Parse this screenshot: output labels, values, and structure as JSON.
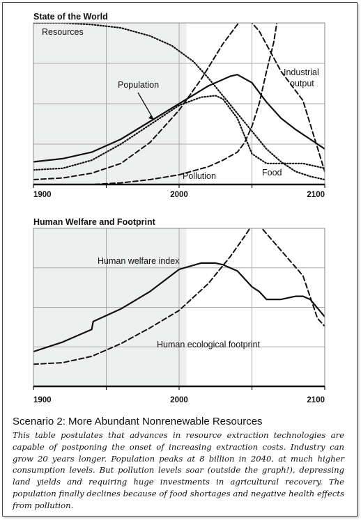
{
  "chart_data": [
    {
      "type": "line",
      "title": "State of the World",
      "xlim": [
        1900,
        2100
      ],
      "ylim": [
        0,
        1
      ],
      "x_ticks": [
        "1900",
        "2000",
        "2100"
      ],
      "grid": true,
      "shaded_region": [
        1900,
        2005
      ],
      "series": [
        {
          "name": "Resources",
          "style": "dotted",
          "x": [
            1900,
            1920,
            1940,
            1960,
            1980,
            1995,
            2010,
            2020,
            2030,
            2040,
            2050,
            2060,
            2070,
            2080,
            2090,
            2100
          ],
          "y": [
            1.0,
            1.0,
            0.99,
            0.97,
            0.92,
            0.86,
            0.76,
            0.66,
            0.55,
            0.44,
            0.33,
            0.22,
            0.14,
            0.08,
            0.05,
            0.03
          ]
        },
        {
          "name": "Population",
          "style": "solid",
          "x": [
            1900,
            1920,
            1940,
            1960,
            1980,
            2000,
            2020,
            2035,
            2040,
            2050,
            2060,
            2070,
            2080,
            2090,
            2100
          ],
          "y": [
            0.14,
            0.16,
            0.2,
            0.28,
            0.39,
            0.5,
            0.61,
            0.67,
            0.68,
            0.63,
            0.51,
            0.41,
            0.34,
            0.28,
            0.22
          ]
        },
        {
          "name": "Industrial output",
          "style": "dashed",
          "x": [
            1900,
            1920,
            1940,
            1960,
            1980,
            2000,
            2015,
            2030,
            2040,
            2045,
            2055,
            2070,
            2085,
            2100
          ],
          "y": [
            0.03,
            0.04,
            0.07,
            0.13,
            0.26,
            0.46,
            0.65,
            0.87,
            0.99,
            1.05,
            0.95,
            0.7,
            0.52,
            0.08
          ]
        },
        {
          "name": "Food",
          "style": "dotted",
          "x": [
            1900,
            1920,
            1940,
            1960,
            1980,
            2000,
            2015,
            2025,
            2030,
            2040,
            2050,
            2060,
            2070,
            2085,
            2100
          ],
          "y": [
            0.09,
            0.1,
            0.15,
            0.25,
            0.37,
            0.49,
            0.54,
            0.55,
            0.53,
            0.41,
            0.19,
            0.13,
            0.13,
            0.13,
            0.1
          ]
        },
        {
          "name": "Pollution",
          "style": "dashed",
          "x": [
            1900,
            1940,
            1960,
            1980,
            2000,
            2020,
            2030,
            2040,
            2045,
            2050,
            2055,
            2060,
            2065,
            2068
          ],
          "y": [
            0.0,
            0.0,
            0.01,
            0.03,
            0.06,
            0.11,
            0.15,
            0.2,
            0.26,
            0.36,
            0.5,
            0.7,
            0.88,
            1.05
          ]
        }
      ],
      "labels": {
        "resources": "Resources",
        "population": "Population",
        "industrial_1": "Industrial",
        "industrial_2": "output",
        "food": "Food",
        "pollution": "Pollution"
      }
    },
    {
      "type": "line",
      "title": "Human Welfare and Footprint",
      "xlim": [
        1900,
        2100
      ],
      "ylim": [
        0,
        1
      ],
      "x_ticks": [
        "1900",
        "2000",
        "2100"
      ],
      "grid": true,
      "shaded_region": [
        1900,
        2005
      ],
      "series": [
        {
          "name": "Human welfare index",
          "style": "solid",
          "x": [
            1900,
            1920,
            1940,
            1941,
            1960,
            1980,
            2000,
            2015,
            2025,
            2030,
            2040,
            2050,
            2055,
            2060,
            2070,
            2080,
            2085,
            2090,
            2100
          ],
          "y": [
            0.22,
            0.28,
            0.36,
            0.41,
            0.49,
            0.6,
            0.74,
            0.78,
            0.78,
            0.77,
            0.73,
            0.63,
            0.6,
            0.55,
            0.55,
            0.57,
            0.57,
            0.55,
            0.44
          ]
        },
        {
          "name": "Human ecological footprint",
          "style": "dashed",
          "x": [
            1900,
            1920,
            1940,
            1960,
            1980,
            2000,
            2020,
            2035,
            2045,
            2050,
            2055,
            2070,
            2085,
            2095,
            2100
          ],
          "y": [
            0.14,
            0.15,
            0.19,
            0.27,
            0.37,
            0.48,
            0.65,
            0.82,
            0.95,
            1.02,
            1.02,
            0.86,
            0.7,
            0.43,
            0.38
          ]
        }
      ],
      "labels": {
        "welfare": "Human welfare index",
        "footprint": "Human ecological footprint"
      }
    }
  ],
  "caption": {
    "title": "Scenario 2: More Abundant Nonrenewable Resources",
    "body": "This table postulates that advances in resource extraction technologies are capable of postponing the onset of increasing extraction costs. Industry can grow 20 years longer. Population peaks at 8 billion in 2040, at much higher consumption levels. But pollution levels soar (outside the graph!), depressing land yields and requiring huge investments in agricultural recovery. The population finally declines because of food shortages and negative health effects from pollution."
  }
}
